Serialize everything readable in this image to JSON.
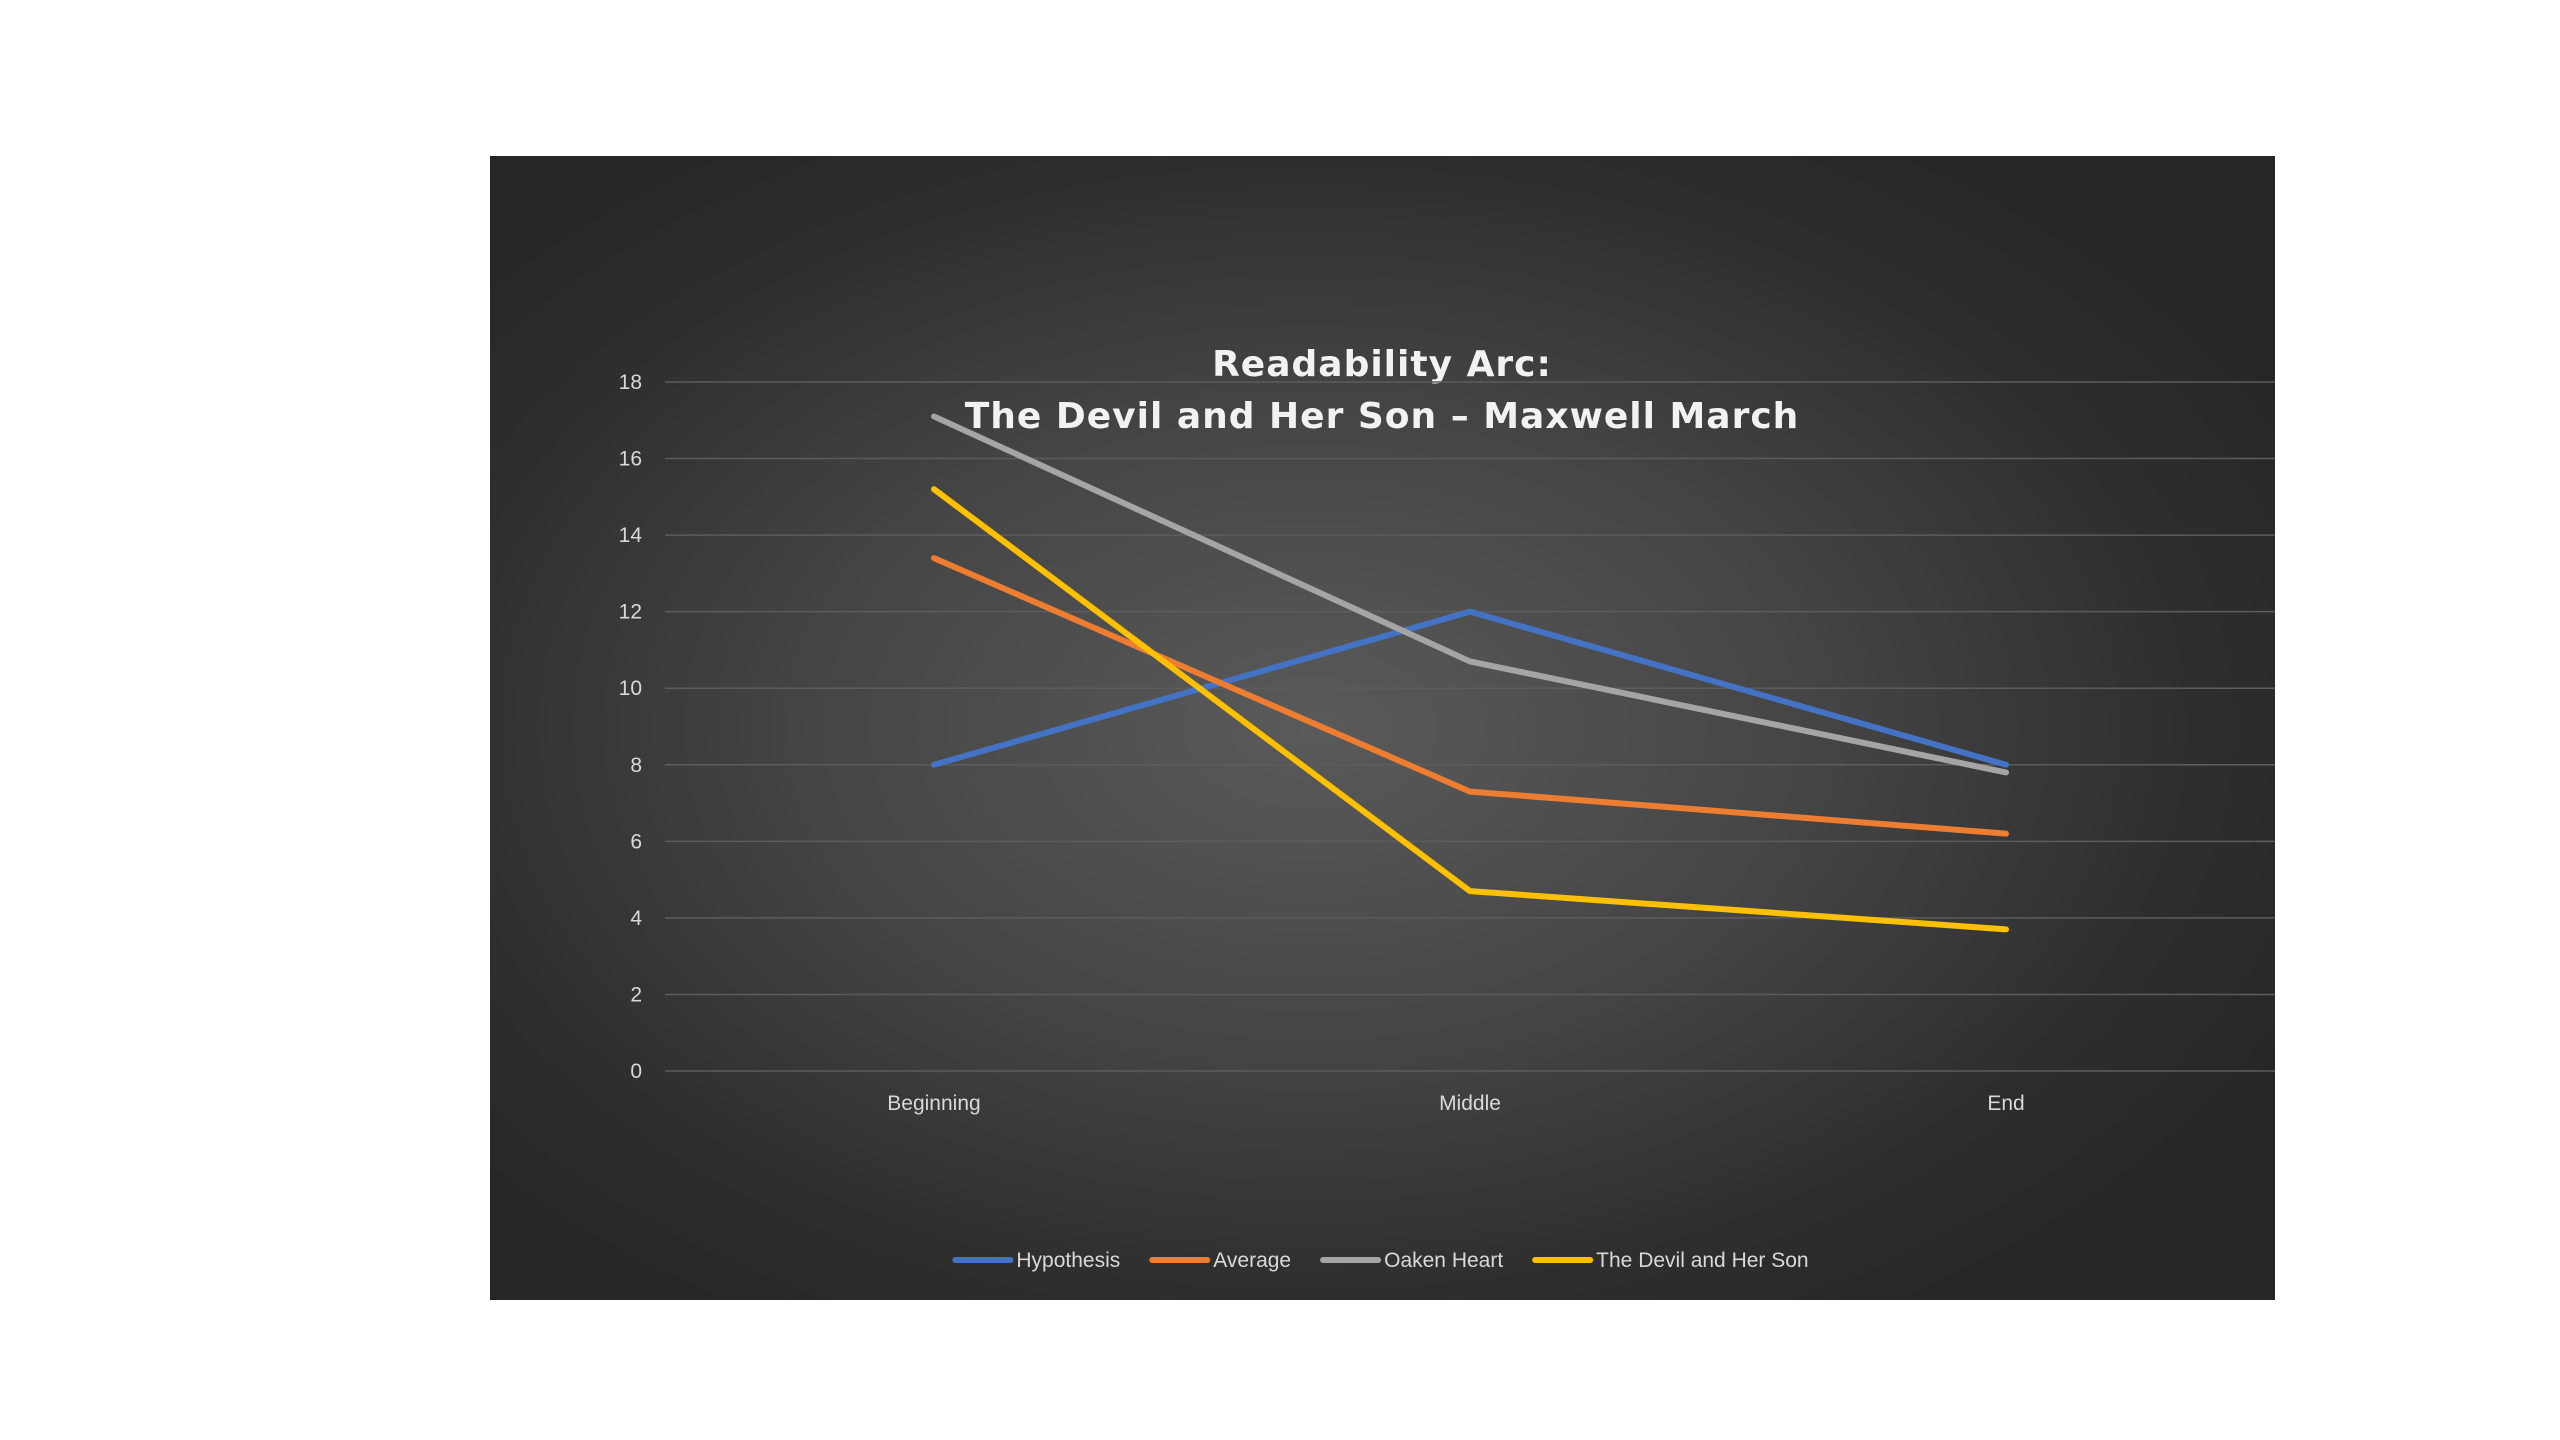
{
  "chart_data": {
    "type": "line",
    "title": [
      "Readability Arc:",
      "The Devil and Her Son – Maxwell March"
    ],
    "xlabel": "",
    "ylabel": "",
    "categories": [
      "Beginning",
      "Middle",
      "End"
    ],
    "ylim": [
      0,
      18
    ],
    "yticks": [
      0,
      2,
      4,
      6,
      8,
      10,
      12,
      14,
      16,
      18
    ],
    "grid": true,
    "legend_position": "bottom",
    "series": [
      {
        "name": "Hypothesis",
        "values": [
          8.0,
          12.0,
          8.0
        ],
        "color": "#4472C4"
      },
      {
        "name": "Average",
        "values": [
          13.4,
          7.3,
          6.2
        ],
        "color": "#ED7D31"
      },
      {
        "name": "Oaken Heart",
        "values": [
          17.1,
          10.7,
          7.8
        ],
        "color": "#A5A5A5"
      },
      {
        "name": "The Devil and Her Son",
        "values": [
          15.2,
          4.7,
          3.7
        ],
        "color": "#FFC000"
      }
    ]
  }
}
